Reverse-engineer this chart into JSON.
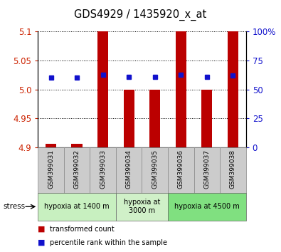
{
  "title": "GDS4929 / 1435920_x_at",
  "samples": [
    "GSM399031",
    "GSM399032",
    "GSM399033",
    "GSM399034",
    "GSM399035",
    "GSM399036",
    "GSM399037",
    "GSM399038"
  ],
  "red_bar_bottom": [
    4.9,
    4.9,
    4.9,
    4.9,
    4.9,
    4.9,
    4.9,
    4.9
  ],
  "red_bar_top": [
    4.906,
    4.906,
    5.1,
    5.0,
    5.0,
    5.1,
    5.0,
    5.1
  ],
  "blue_y": [
    5.021,
    5.021,
    5.026,
    5.022,
    5.022,
    5.026,
    5.022,
    5.024
  ],
  "ylim": [
    4.9,
    5.1
  ],
  "yticks_left": [
    4.9,
    4.95,
    5.0,
    5.05,
    5.1
  ],
  "yticks_right": [
    0,
    25,
    50,
    75,
    100
  ],
  "yticks_right_labels": [
    "0",
    "25",
    "50",
    "75",
    "100%"
  ],
  "groups": [
    {
      "label": "hypoxia at 1400 m",
      "start": 0,
      "end": 3,
      "color": "#c8f0c0"
    },
    {
      "label": "hypoxia at\n3000 m",
      "start": 3,
      "end": 5,
      "color": "#d0f0c8"
    },
    {
      "label": "hypoxia at 4500 m",
      "start": 5,
      "end": 8,
      "color": "#80e080"
    }
  ],
  "bar_color": "#bb0000",
  "blue_color": "#1111cc",
  "left_tick_color": "#cc2200",
  "right_tick_color": "#1111cc",
  "bg_color": "#ffffff",
  "sample_bg": "#cccccc",
  "bar_width": 0.42,
  "legend_red": "transformed count",
  "legend_blue": "percentile rank within the sample",
  "stress_label": "stress"
}
